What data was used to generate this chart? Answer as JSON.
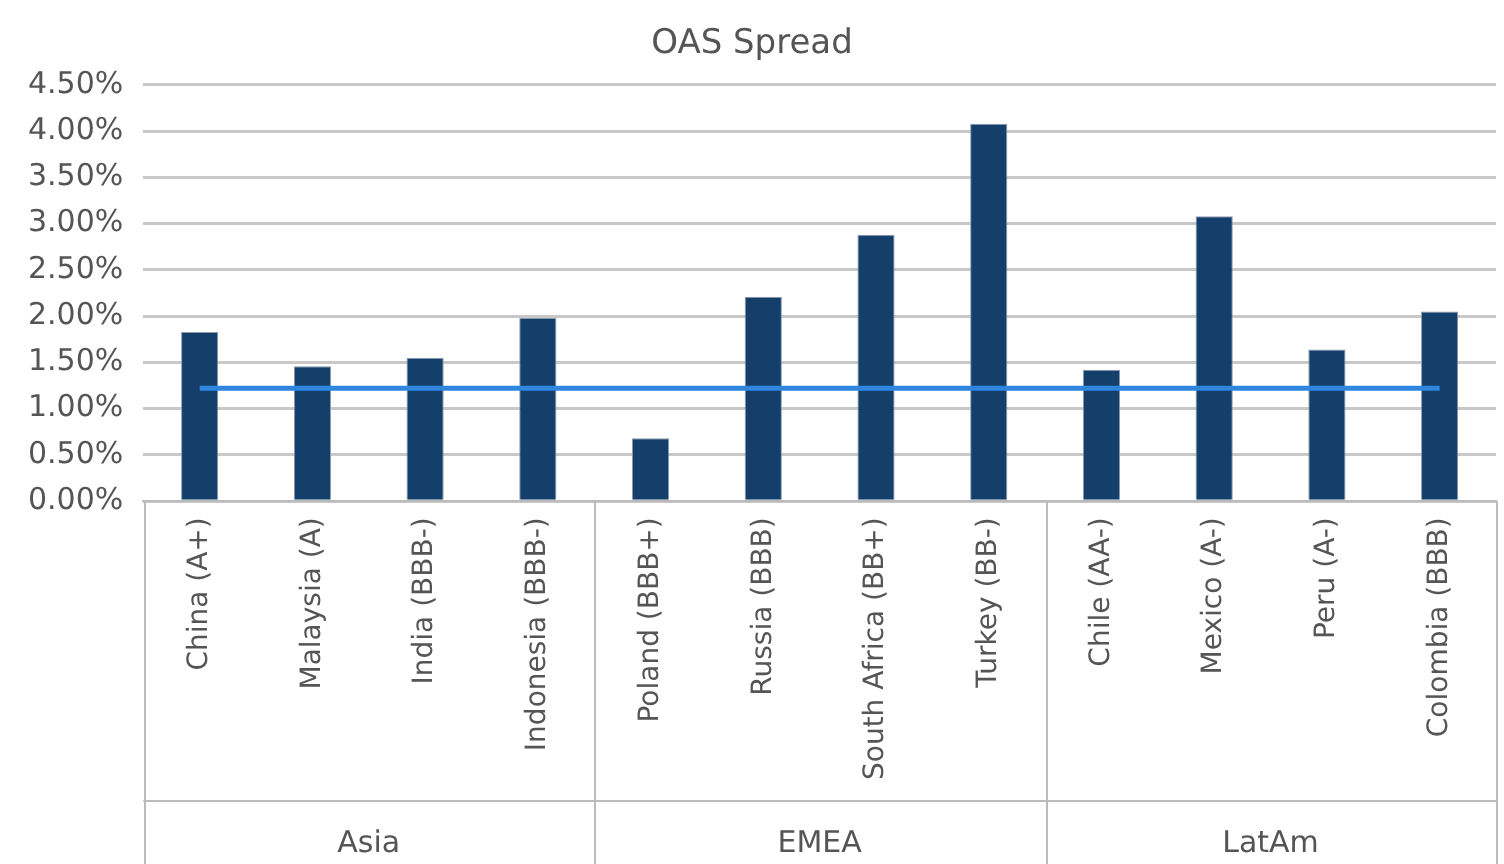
{
  "chart_data": {
    "type": "bar",
    "title": "OAS Spread",
    "categories": [
      "China (A+)",
      "Malaysia (A)",
      "India (BBB-)",
      "Indonesia (BBB-)",
      "Poland (BBB+)",
      "Russia (BBB)",
      "South Africa (BB+)",
      "Turkey (BB-)",
      "Chile (AA-)",
      "Mexico (A-)",
      "Peru (A-)",
      "Colombia (BBB)"
    ],
    "series": [
      {
        "color": "#143f6b",
        "values": [
          1.83,
          1.46,
          1.55,
          1.98,
          0.68,
          2.21,
          2.88,
          4.08,
          1.42,
          3.08,
          1.64,
          2.05
        ]
      },
      {
        "type": "line",
        "color": "#2e86de",
        "marker": "none",
        "values": [
          1.22,
          1.22,
          1.22,
          1.22,
          1.22,
          1.22,
          1.22,
          1.22,
          1.22,
          1.22,
          1.22,
          1.22
        ]
      }
    ],
    "ylim": [
      0,
      4.5
    ],
    "yticks": [
      {
        "value": 0,
        "label": "0.00%"
      },
      {
        "value": 0.5,
        "label": "0.50%"
      },
      {
        "value": 1,
        "label": "1.00%"
      },
      {
        "value": 1.5,
        "label": "1.50%"
      },
      {
        "value": 2,
        "label": "2.00%"
      },
      {
        "value": 2.5,
        "label": "2.50%"
      },
      {
        "value": 3,
        "label": "3.00%"
      },
      {
        "value": 3.5,
        "label": "3.50%"
      },
      {
        "value": 4,
        "label": "4.00%"
      },
      {
        "value": 4.5,
        "label": "4.50%"
      }
    ],
    "grid": "y",
    "legend": false,
    "annotations": [
      "Asia",
      "EMEA",
      "LatAm"
    ]
  }
}
